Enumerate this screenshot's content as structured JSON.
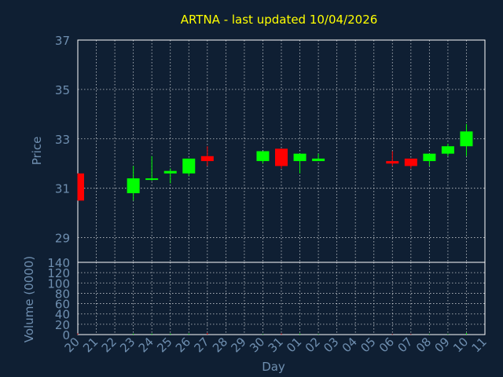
{
  "chart_data": {
    "type": "candlestick",
    "title": "ARTNA - last updated 10/04/2026",
    "ylabel": "Price",
    "volume_ylabel": "Volume (0000)",
    "xlabel": "Day",
    "ylim": [
      28,
      37
    ],
    "price_ticks": [
      29,
      31,
      33,
      35,
      37
    ],
    "volume_ylim": [
      0,
      140
    ],
    "volume_ticks": [
      0,
      20,
      40,
      60,
      80,
      100,
      120,
      140
    ],
    "x_ticks": [
      "20",
      "21",
      "22",
      "23",
      "24",
      "25",
      "26",
      "27",
      "28",
      "29",
      "30",
      "31",
      "01",
      "02",
      "03",
      "04",
      "05",
      "06",
      "07",
      "08",
      "09",
      "10",
      "11"
    ],
    "grid": true,
    "colors": {
      "up": "#00ff00",
      "down": "#ff0000",
      "title": "#ffff00",
      "axis_text": "#6f8fb0",
      "background": "#0f1f33"
    },
    "candles": [
      {
        "day": "20",
        "open": 31.6,
        "high": 31.6,
        "low": 30.5,
        "close": 30.5,
        "volume": 2
      },
      {
        "day": "23",
        "open": 30.8,
        "high": 31.9,
        "low": 30.5,
        "close": 31.4,
        "volume": 2
      },
      {
        "day": "24",
        "open": 31.4,
        "high": 32.3,
        "low": 31.3,
        "close": 31.4,
        "volume": 2
      },
      {
        "day": "25",
        "open": 31.6,
        "high": 31.8,
        "low": 31.2,
        "close": 31.7,
        "volume": 2
      },
      {
        "day": "26",
        "open": 31.6,
        "high": 32.2,
        "low": 31.5,
        "close": 32.2,
        "volume": 2
      },
      {
        "day": "27",
        "open": 32.3,
        "high": 32.7,
        "low": 31.9,
        "close": 32.1,
        "volume": 3
      },
      {
        "day": "30",
        "open": 32.1,
        "high": 32.5,
        "low": 32.0,
        "close": 32.5,
        "volume": 1
      },
      {
        "day": "31",
        "open": 32.6,
        "high": 32.6,
        "low": 31.8,
        "close": 31.9,
        "volume": 2
      },
      {
        "day": "01",
        "open": 32.1,
        "high": 32.4,
        "low": 31.6,
        "close": 32.4,
        "volume": 2
      },
      {
        "day": "02",
        "open": 32.1,
        "high": 32.4,
        "low": 32.1,
        "close": 32.2,
        "volume": 1
      },
      {
        "day": "06",
        "open": 32.1,
        "high": 32.5,
        "low": 31.9,
        "close": 32.0,
        "volume": 1
      },
      {
        "day": "07",
        "open": 32.2,
        "high": 32.2,
        "low": 31.8,
        "close": 31.9,
        "volume": 1
      },
      {
        "day": "08",
        "open": 32.1,
        "high": 32.4,
        "low": 31.9,
        "close": 32.4,
        "volume": 1
      },
      {
        "day": "09",
        "open": 32.4,
        "high": 32.8,
        "low": 32.3,
        "close": 32.7,
        "volume": 1
      },
      {
        "day": "10",
        "open": 32.7,
        "high": 33.6,
        "low": 32.3,
        "close": 33.3,
        "volume": 3
      }
    ]
  }
}
